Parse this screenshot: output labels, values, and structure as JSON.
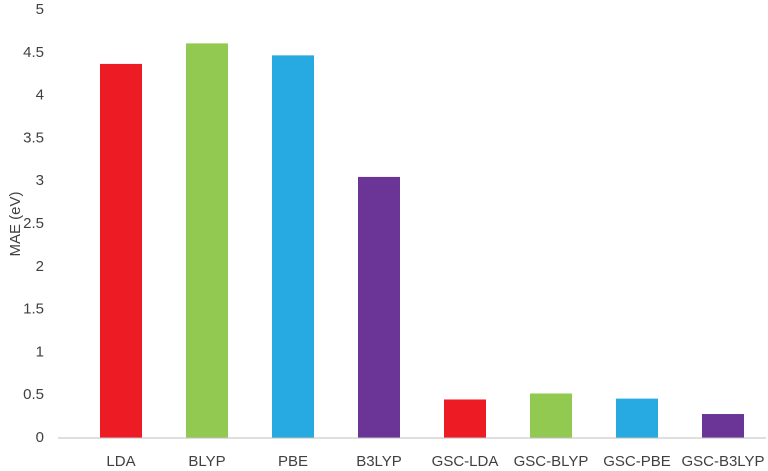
{
  "chart_data": {
    "type": "bar",
    "ylabel": "MAE (eV)",
    "categories": [
      "LDA",
      "BLYP",
      "PBE",
      "B3LYP",
      "GSC-LDA",
      "GSC-BLYP",
      "GSC-PBE",
      "GSC-B3LYP"
    ],
    "values": [
      4.37,
      4.61,
      4.47,
      3.05,
      0.45,
      0.52,
      0.46,
      0.28
    ],
    "colors": [
      "#ed1c24",
      "#92c950",
      "#26aae1",
      "#6a3597",
      "#ed1c24",
      "#92c950",
      "#26aae1",
      "#6a3597"
    ],
    "ylim": [
      0,
      5
    ],
    "yticks": [
      0,
      0.5,
      1,
      1.5,
      2,
      2.5,
      3,
      3.5,
      4,
      4.5,
      5
    ],
    "grid": false
  }
}
